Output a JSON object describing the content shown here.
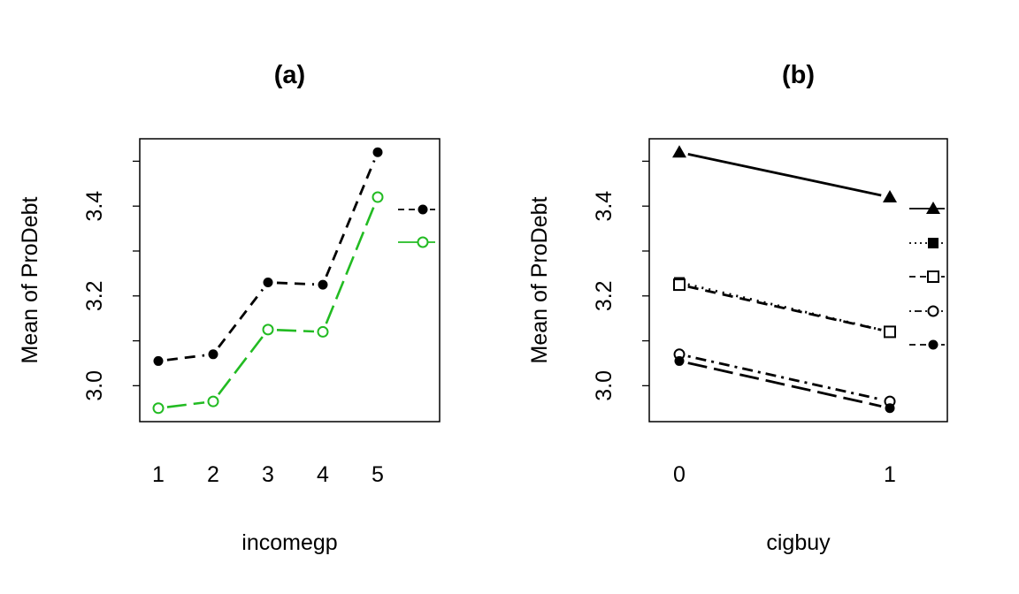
{
  "chart_data": [
    {
      "type": "line",
      "title": "(a)",
      "xlabel": "incomegp",
      "ylabel": "Mean of ProDebt",
      "x": [
        "1",
        "2",
        "3",
        "4",
        "5"
      ],
      "ylim": [
        2.92,
        3.55
      ],
      "yticks": [
        "3.0",
        "3.2",
        "3.4"
      ],
      "legend_placement": "right",
      "grid": false,
      "series": [
        {
          "values": [
            3.055,
            3.07,
            3.23,
            3.225,
            3.52
          ],
          "color": "#000000",
          "marker": "filled-circle",
          "linestyle": "dashed"
        },
        {
          "values": [
            2.95,
            2.965,
            3.125,
            3.12,
            3.42
          ],
          "color": "#22bb22",
          "marker": "open-circle",
          "linestyle": "long-dash"
        }
      ]
    },
    {
      "type": "line",
      "title": "(b)",
      "xlabel": "cigbuy",
      "ylabel": "Mean of ProDebt",
      "x": [
        "0",
        "1"
      ],
      "ylim": [
        2.92,
        3.55
      ],
      "yticks": [
        "3.0",
        "3.2",
        "3.4"
      ],
      "legend_placement": "right",
      "grid": false,
      "series": [
        {
          "values": [
            3.52,
            3.42
          ],
          "color": "#000000",
          "marker": "filled-triangle",
          "linestyle": "solid"
        },
        {
          "values": [
            3.23,
            3.12
          ],
          "color": "#000000",
          "marker": "filled-square",
          "linestyle": "dotted"
        },
        {
          "values": [
            3.225,
            3.12
          ],
          "color": "#000000",
          "marker": "open-square",
          "linestyle": "dashed"
        },
        {
          "values": [
            3.07,
            2.965
          ],
          "color": "#000000",
          "marker": "open-circle",
          "linestyle": "dot-dash"
        },
        {
          "values": [
            3.055,
            2.95
          ],
          "color": "#000000",
          "marker": "filled-circle",
          "linestyle": "long-dash"
        }
      ]
    }
  ]
}
